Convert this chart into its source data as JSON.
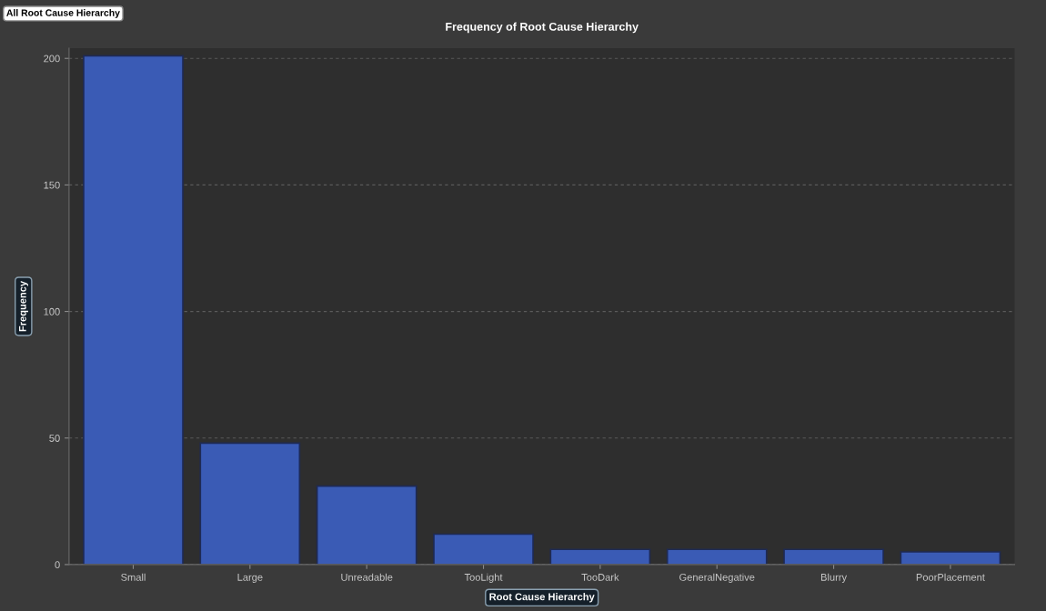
{
  "chart_data": {
    "type": "bar",
    "title": "Frequency of Root Cause Hierarchy",
    "categories": [
      "Small",
      "Large",
      "Unreadable",
      "TooLight",
      "TooDark",
      "GeneralNegative",
      "Blurry",
      "PoorPlacement"
    ],
    "values": [
      201,
      48,
      31,
      12,
      6,
      6,
      6,
      5
    ],
    "color": "#3a5bb5",
    "xlabel": "Root Cause Hierarchy",
    "ylabel": "Frequency",
    "annotations": [
      "All Root Cause Hierarchy"
    ],
    "ylim": [
      0,
      204
    ],
    "yticks": [
      0,
      50,
      100,
      150,
      200
    ],
    "grid": "y"
  }
}
